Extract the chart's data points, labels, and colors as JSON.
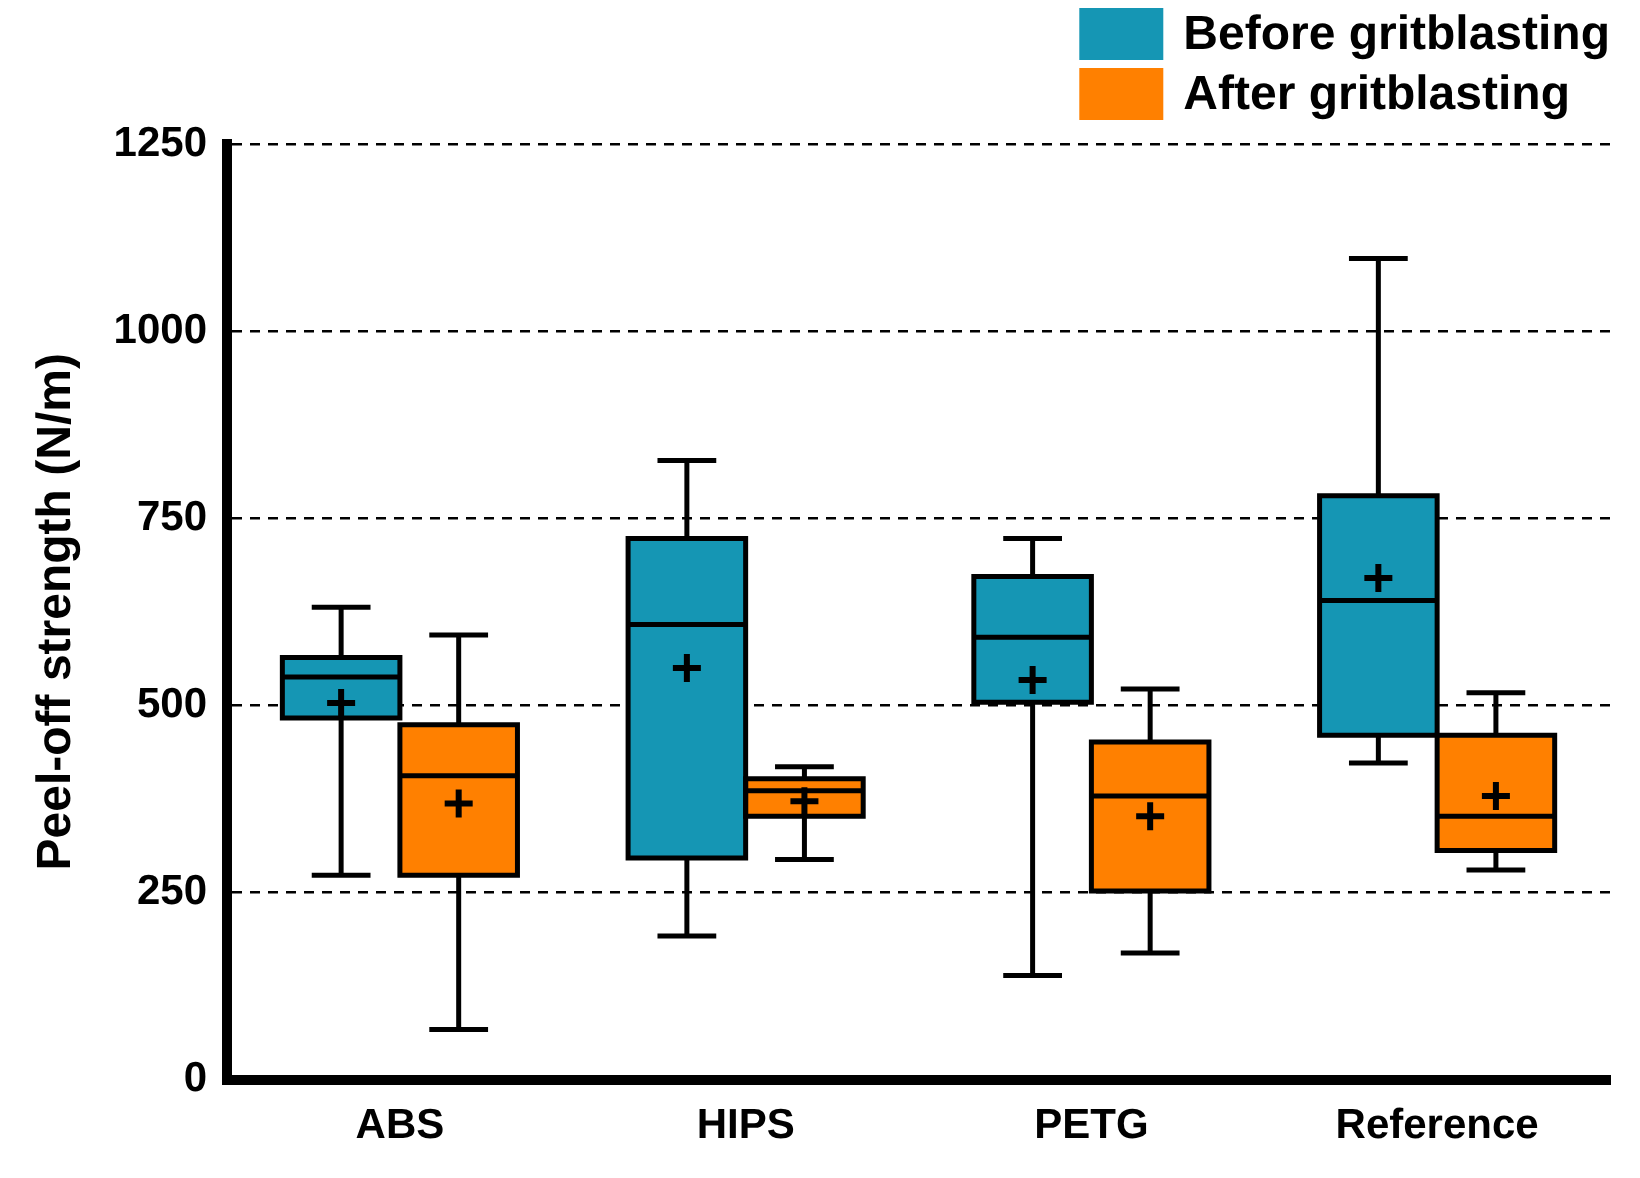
{
  "chart_data": {
    "type": "box",
    "ylabel": "Peel-off strength (N/m)",
    "categories": [
      "ABS",
      "HIPS",
      "PETG",
      "Reference"
    ],
    "ylim": [
      0,
      1250
    ],
    "yticks": [
      0,
      250,
      500,
      750,
      1000,
      1250
    ],
    "grid": "y",
    "legend": "top right",
    "series": [
      {
        "name": "Before gritblasting",
        "color": "#1596b4",
        "boxes": [
          {
            "low": 273,
            "q1": 483,
            "median": 538,
            "q3": 564,
            "high": 631,
            "mean": 503
          },
          {
            "low": 192,
            "q1": 296,
            "median": 608,
            "q3": 723,
            "high": 827,
            "mean": 550
          },
          {
            "low": 139,
            "q1": 504,
            "median": 591,
            "q3": 672,
            "high": 723,
            "mean": 534
          },
          {
            "low": 423,
            "q1": 460,
            "median": 640,
            "q3": 780,
            "high": 1097,
            "mean": 670
          }
        ]
      },
      {
        "name": "After gritblasting",
        "color": "#ff8000",
        "boxes": [
          {
            "low": 67,
            "q1": 273,
            "median": 406,
            "q3": 474,
            "high": 594,
            "mean": 369
          },
          {
            "low": 294,
            "q1": 352,
            "median": 386,
            "q3": 402,
            "high": 418,
            "mean": 372
          },
          {
            "low": 169,
            "q1": 252,
            "median": 379,
            "q3": 451,
            "high": 522,
            "mean": 352
          },
          {
            "low": 280,
            "q1": 306,
            "median": 352,
            "q3": 460,
            "high": 517,
            "mean": 379
          }
        ]
      }
    ]
  }
}
